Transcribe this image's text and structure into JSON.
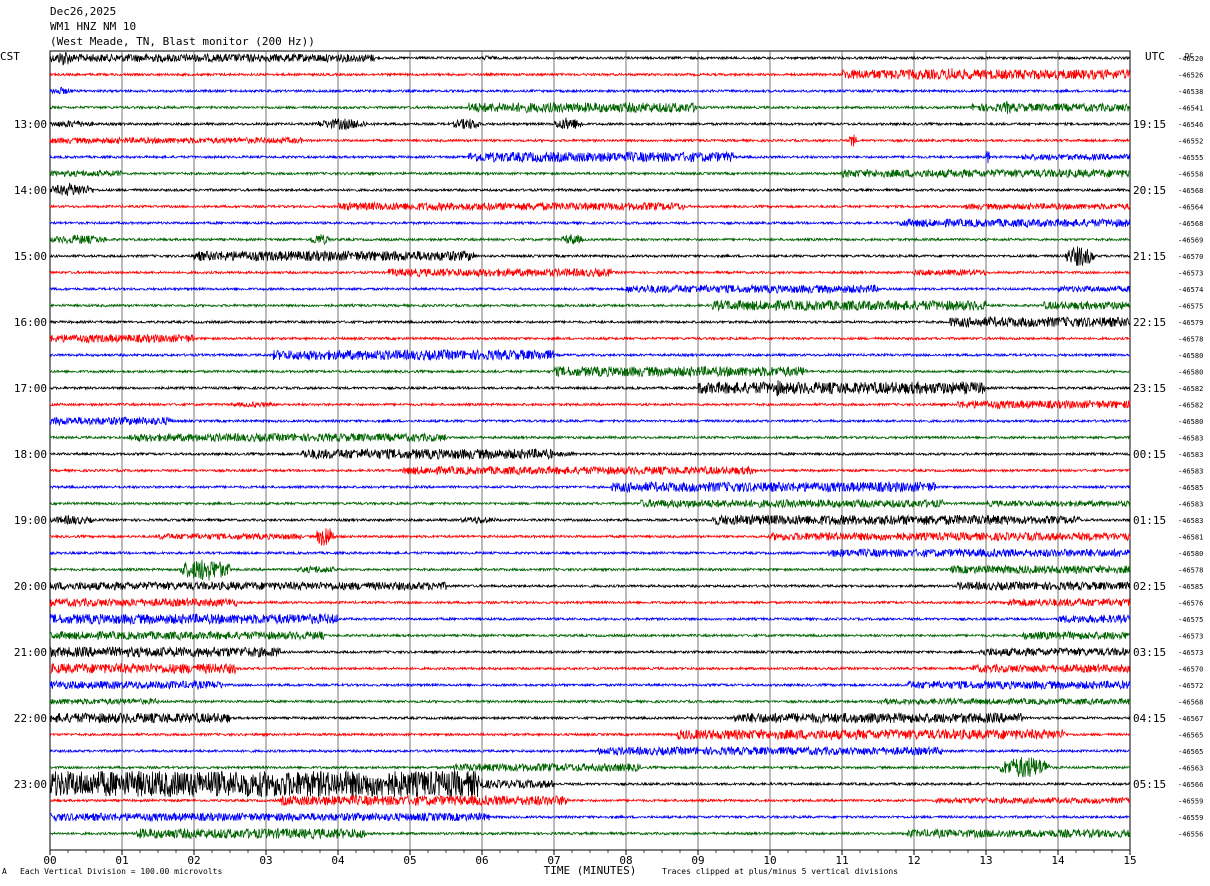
{
  "header": {
    "date": "Dec26,2025",
    "station": "WM1 HNZ NM 10",
    "location": "(West Meade, TN, Blast monitor (200 Hz))"
  },
  "left_tz": "CST",
  "right_tz": "UTC",
  "dc_label": "DC",
  "x_axis_title": "TIME (MINUTES)",
  "bottom_left_note": "Each Vertical Division =  100.00 microvolts",
  "bottom_left_mark": "A",
  "bottom_right_note": "Traces clipped at plus/minus 5 vertical divisions",
  "colors": {
    "black": "#000000",
    "red": "#ff0000",
    "blue": "#0000ff",
    "green": "#006400"
  },
  "chart_data": {
    "type": "line",
    "title": "WM1 HNZ NM 10",
    "xlabel": "TIME (MINUTES)",
    "xlim": [
      0,
      15
    ],
    "x_ticks": [
      "00",
      "01",
      "02",
      "03",
      "04",
      "05",
      "06",
      "07",
      "08",
      "09",
      "10",
      "11",
      "12",
      "13",
      "14",
      "15"
    ],
    "trace_colors": [
      "black",
      "red",
      "blue",
      "green"
    ],
    "trace_minutes": 15,
    "left_hour_labels": [
      "13:00",
      "14:00",
      "15:00",
      "16:00",
      "17:00",
      "18:00",
      "19:00",
      "20:00",
      "21:00",
      "22:00",
      "23:00"
    ],
    "right_hour_labels": [
      "19:15",
      "20:15",
      "21:15",
      "22:15",
      "23:15",
      "00:15",
      "01:15",
      "02:15",
      "03:15",
      "04:15",
      "05:15"
    ],
    "first_labeled_trace_index": 4,
    "trace_dc_offsets": [
      "-46520",
      "-46526",
      "-46538",
      "-46541",
      "-46546",
      "-46552",
      "-46555",
      "-46558",
      "-46568",
      "-46564",
      "-46568",
      "-46569",
      "-46570",
      "-46573",
      "-46574",
      "-46575",
      "-46579",
      "-46578",
      "-46580",
      "-46580",
      "-46582",
      "-46582",
      "-46580",
      "-46583",
      "-46583",
      "-46583",
      "-46585",
      "-46583",
      "-46583",
      "-46581",
      "-46580",
      "-46578",
      "-46585",
      "-46576",
      "-46575",
      "-46573",
      "-46573",
      "-46570",
      "-46572",
      "-46568",
      "-46567",
      "-46565",
      "-46565",
      "-46563",
      "-46566",
      "-46559",
      "-46559",
      "-46556"
    ],
    "activity_segments": [
      [
        [
          0,
          4.5,
          4
        ],
        [
          6,
          6.2,
          3
        ],
        [
          0.1,
          0.3,
          9
        ]
      ],
      [
        [
          11,
          15,
          5
        ],
        [
          12.4,
          12.7,
          8
        ]
      ],
      [
        [
          0,
          0.3,
          4
        ]
      ],
      [
        [
          5.8,
          9,
          5
        ],
        [
          12.8,
          15,
          4
        ],
        [
          13.2,
          13.4,
          7
        ]
      ],
      [
        [
          0,
          0.6,
          4
        ],
        [
          3.7,
          4.4,
          6
        ],
        [
          5.6,
          6,
          6
        ],
        [
          7,
          7.4,
          7
        ]
      ],
      [
        [
          0,
          3.5,
          3
        ],
        [
          11.1,
          11.2,
          8
        ]
      ],
      [
        [
          5.8,
          9.5,
          5
        ],
        [
          13.5,
          15,
          3
        ],
        [
          13,
          13.05,
          9
        ]
      ],
      [
        [
          11,
          15,
          4
        ],
        [
          0,
          1,
          3
        ]
      ],
      [
        [
          0,
          0.6,
          7
        ]
      ],
      [
        [
          4,
          8.8,
          4
        ],
        [
          12.7,
          15,
          3
        ]
      ],
      [
        [
          11.8,
          15,
          4
        ]
      ],
      [
        [
          0,
          0.8,
          5
        ],
        [
          3.6,
          3.9,
          6
        ],
        [
          7.1,
          7.4,
          6
        ]
      ],
      [
        [
          2,
          5.9,
          5
        ],
        [
          14.1,
          14.5,
          11
        ]
      ],
      [
        [
          4.7,
          7.8,
          4
        ],
        [
          12,
          13,
          3
        ]
      ],
      [
        [
          8,
          11.5,
          4
        ],
        [
          14,
          15,
          3
        ]
      ],
      [
        [
          9.2,
          13,
          5
        ],
        [
          13.8,
          15,
          4
        ]
      ],
      [
        [
          12.5,
          15,
          5
        ]
      ],
      [
        [
          0,
          2,
          4
        ]
      ],
      [
        [
          3.1,
          7,
          5
        ]
      ],
      [
        [
          7,
          10.5,
          5
        ]
      ],
      [
        [
          9,
          13,
          6
        ],
        [
          10,
          10.2,
          9
        ]
      ],
      [
        [
          12.6,
          15,
          4
        ],
        [
          2.5,
          3.2,
          3
        ]
      ],
      [
        [
          0,
          1.7,
          4
        ]
      ],
      [
        [
          1.1,
          5.5,
          4
        ]
      ],
      [
        [
          3.5,
          7,
          5
        ],
        [
          7,
          7.3,
          3
        ]
      ],
      [
        [
          4.9,
          9.8,
          4
        ]
      ],
      [
        [
          7.8,
          12.3,
          5
        ]
      ],
      [
        [
          8.2,
          12.4,
          4
        ],
        [
          13,
          15,
          3
        ]
      ],
      [
        [
          0,
          0.6,
          5
        ],
        [
          5.7,
          6.2,
          4
        ],
        [
          9.2,
          13.3,
          5
        ],
        [
          13.3,
          14.3,
          4
        ]
      ],
      [
        [
          3.7,
          3.95,
          12
        ],
        [
          1.5,
          3.5,
          3
        ],
        [
          10,
          15,
          4
        ]
      ],
      [
        [
          10.8,
          15,
          4
        ]
      ],
      [
        [
          1.8,
          2.5,
          12
        ],
        [
          3.4,
          4,
          4
        ],
        [
          12.5,
          15,
          4
        ]
      ],
      [
        [
          0,
          5.5,
          4
        ],
        [
          12.6,
          15,
          4
        ]
      ],
      [
        [
          0,
          2.6,
          4
        ],
        [
          13.3,
          15,
          4
        ]
      ],
      [
        [
          0,
          4,
          5
        ],
        [
          14,
          15,
          4
        ]
      ],
      [
        [
          0,
          3.8,
          4
        ],
        [
          13.5,
          15,
          4
        ]
      ],
      [
        [
          0,
          3.2,
          5
        ],
        [
          12.9,
          15,
          4
        ]
      ],
      [
        [
          0,
          2.6,
          5
        ],
        [
          12.8,
          15,
          4
        ]
      ],
      [
        [
          0,
          2.4,
          4
        ],
        [
          11.9,
          15,
          4
        ]
      ],
      [
        [
          0,
          1.5,
          3
        ],
        [
          11.5,
          15,
          3
        ]
      ],
      [
        [
          0,
          2.5,
          5
        ],
        [
          9.5,
          13.5,
          5
        ]
      ],
      [
        [
          8.7,
          14.1,
          5
        ]
      ],
      [
        [
          7.6,
          12.4,
          4
        ]
      ],
      [
        [
          5.6,
          8.2,
          4
        ],
        [
          13.2,
          13.9,
          12
        ]
      ],
      [
        [
          0,
          6,
          13
        ],
        [
          6,
          7,
          4
        ]
      ],
      [
        [
          3.2,
          7.2,
          5
        ],
        [
          12.3,
          15,
          3
        ]
      ],
      [
        [
          0,
          6.1,
          4
        ]
      ],
      [
        [
          1.2,
          4.4,
          5
        ],
        [
          11.9,
          15,
          4
        ]
      ]
    ]
  }
}
